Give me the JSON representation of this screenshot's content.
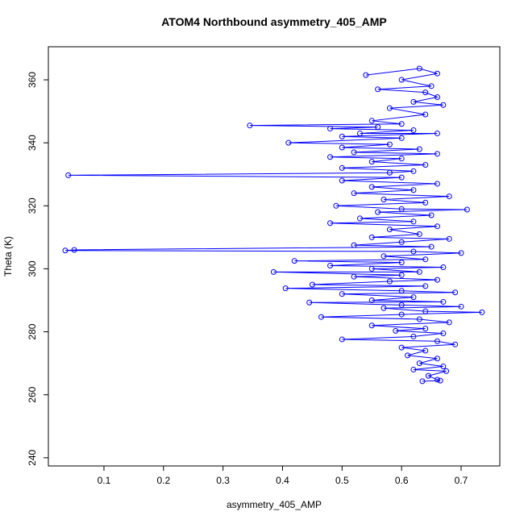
{
  "chart_data": {
    "type": "line",
    "title": "ATOM4 Northbound asymmetry_405_AMP",
    "xlabel": "asymmetry_405_AMP",
    "ylabel": "Theta (K)",
    "color": "#0000ff",
    "markers": true,
    "xlim": [
      0.0066,
      0.765
    ],
    "ylim": [
      237.4,
      370.5
    ],
    "xticks": [
      0.1,
      0.2,
      0.3,
      0.4,
      0.5,
      0.6,
      0.7
    ],
    "yticks": [
      240,
      260,
      280,
      300,
      320,
      340,
      360
    ],
    "x": [
      0.54,
      0.63,
      0.66,
      0.6,
      0.65,
      0.56,
      0.64,
      0.66,
      0.62,
      0.67,
      0.58,
      0.64,
      0.55,
      0.6,
      0.345,
      0.56,
      0.48,
      0.62,
      0.53,
      0.66,
      0.5,
      0.6,
      0.41,
      0.58,
      0.5,
      0.63,
      0.52,
      0.66,
      0.48,
      0.6,
      0.55,
      0.64,
      0.5,
      0.62,
      0.58,
      0.04,
      0.6,
      0.5,
      0.66,
      0.55,
      0.62,
      0.52,
      0.68,
      0.57,
      0.64,
      0.49,
      0.6,
      0.71,
      0.56,
      0.65,
      0.53,
      0.62,
      0.48,
      0.66,
      0.58,
      0.63,
      0.55,
      0.68,
      0.6,
      0.52,
      0.65,
      0.05,
      0.035,
      0.62,
      0.7,
      0.57,
      0.64,
      0.42,
      0.6,
      0.48,
      0.67,
      0.55,
      0.63,
      0.385,
      0.6,
      0.52,
      0.66,
      0.58,
      0.45,
      0.64,
      0.405,
      0.6,
      0.69,
      0.5,
      0.62,
      0.55,
      0.67,
      0.445,
      0.6,
      0.7,
      0.57,
      0.64,
      0.735,
      0.6,
      0.465,
      0.63,
      0.68,
      0.55,
      0.64,
      0.59,
      0.67,
      0.62,
      0.5,
      0.66,
      0.69,
      0.6,
      0.64,
      0.61,
      0.66,
      0.63,
      0.67,
      0.62,
      0.675,
      0.645,
      0.66,
      0.665,
      0.635
    ],
    "values": [
      361.5,
      363.6,
      362,
      360,
      358,
      357,
      356,
      354.5,
      353,
      352,
      351,
      349,
      347,
      346,
      345.5,
      345,
      344.5,
      344,
      343,
      343,
      342,
      341.5,
      340,
      339.5,
      338.5,
      338,
      337,
      336.5,
      335.5,
      335,
      334,
      333,
      332,
      331,
      330.5,
      329.7,
      329,
      328,
      327,
      326,
      325,
      324,
      323,
      322,
      321,
      320,
      319,
      318.8,
      318,
      317,
      316,
      315,
      314.5,
      313.5,
      312.5,
      311,
      310,
      309.5,
      308.5,
      307.5,
      307,
      306,
      305.8,
      305.5,
      305,
      304,
      303,
      302.5,
      302,
      301,
      300.5,
      300,
      299,
      299,
      298,
      297.5,
      296.5,
      296,
      295,
      294.5,
      293.8,
      293,
      292.5,
      292,
      291,
      290,
      289.5,
      289.3,
      288.5,
      288,
      287.5,
      286.5,
      286.2,
      285.5,
      284.7,
      284,
      283,
      282,
      281,
      280.3,
      279.5,
      278.5,
      277.6,
      277,
      276,
      275,
      274,
      272.5,
      271.5,
      270,
      269,
      268,
      267.5,
      266,
      264.8,
      264.5,
      264.3
    ]
  }
}
